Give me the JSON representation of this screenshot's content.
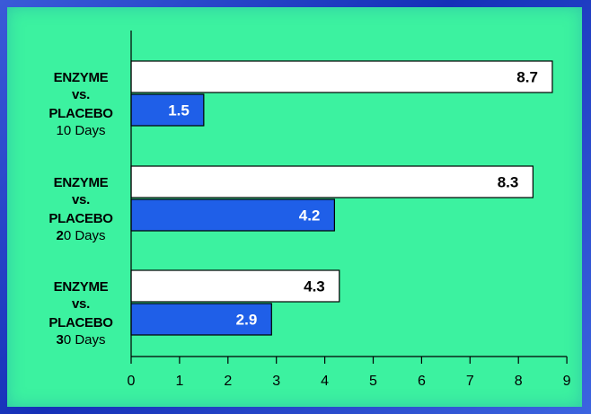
{
  "chart_data": {
    "type": "bar",
    "orientation": "horizontal",
    "title": "",
    "xlabel": "",
    "ylabel": "",
    "xlim": [
      0,
      9
    ],
    "x_ticks": [
      "0",
      "1",
      "2",
      "3",
      "4",
      "5",
      "6",
      "7",
      "8",
      "9"
    ],
    "grid": false,
    "categories": [
      {
        "line1": "ENZYME",
        "line2": "vs.",
        "line3": "PLACEBO",
        "days_bold": "1",
        "days_rest": "0 Days",
        "days_num_bold": false
      },
      {
        "line1": "ENZYME",
        "line2": "vs.",
        "line3": "PLACEBO",
        "days_bold": "2",
        "days_rest": "0 Days",
        "days_num_bold": true
      },
      {
        "line1": "ENZYME",
        "line2": "vs.",
        "line3": "PLACEBO",
        "days_bold": "3",
        "days_rest": "0 Days",
        "days_num_bold": true
      }
    ],
    "series": [
      {
        "values": [
          8.7,
          8.3,
          4.3
        ],
        "labels": [
          "8.7",
          "8.3",
          "4.3"
        ],
        "color": "#ffffff",
        "label_color": "#000000"
      },
      {
        "values": [
          1.5,
          4.2,
          2.9
        ],
        "labels": [
          "1.5",
          "4.2",
          "2.9"
        ],
        "color": "#1f5fe8",
        "label_color": "#ffffff"
      }
    ]
  },
  "colors": {
    "background": "#3cf2a0",
    "frame": "#1f3fc4",
    "enzyme_bar": "#ffffff",
    "placebo_bar": "#1f5fe8"
  }
}
